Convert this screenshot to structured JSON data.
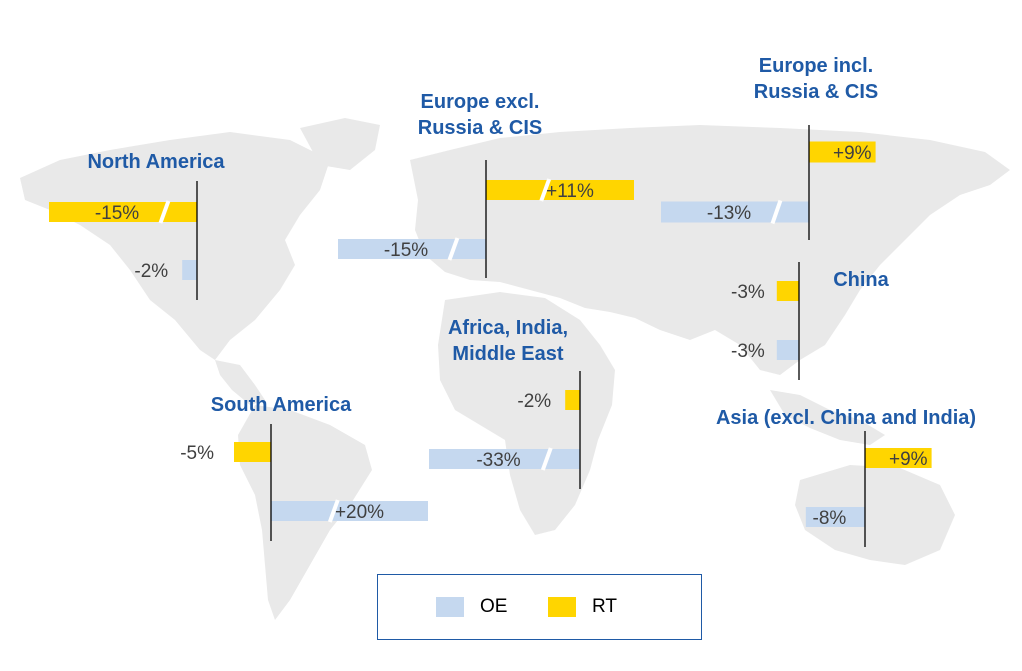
{
  "colors": {
    "OE": "#c5d8ef",
    "RT": "#ffd500",
    "title": "#1f5aa6",
    "label": "#404040"
  },
  "legend": {
    "oe_label": "OE",
    "rt_label": "RT"
  },
  "chart_data": {
    "type": "bar",
    "orientation": "horizontal",
    "series": [
      {
        "name": "OE",
        "color": "#c5d8ef"
      },
      {
        "name": "RT",
        "color": "#ffd500"
      }
    ],
    "regions": [
      {
        "key": "north-america",
        "title": [
          "North America"
        ],
        "bars": [
          {
            "series": "RT",
            "value": -15,
            "label": "-15%",
            "broken": true
          },
          {
            "series": "OE",
            "value": -2,
            "label": "-2%",
            "broken": false
          }
        ]
      },
      {
        "key": "europe-excl",
        "title": [
          "Europe excl.",
          "Russia & CIS"
        ],
        "bars": [
          {
            "series": "RT",
            "value": 11,
            "label": "+11%",
            "broken": true
          },
          {
            "series": "OE",
            "value": -15,
            "label": "-15%",
            "broken": true
          }
        ]
      },
      {
        "key": "europe-incl",
        "title": [
          "Europe incl.",
          "Russia & CIS"
        ],
        "bars": [
          {
            "series": "RT",
            "value": 9,
            "label": "+9%",
            "broken": false
          },
          {
            "series": "OE",
            "value": -13,
            "label": "-13%",
            "broken": true
          }
        ]
      },
      {
        "key": "china",
        "title": [
          "China"
        ],
        "bars": [
          {
            "series": "RT",
            "value": -3,
            "label": "-3%",
            "broken": false
          },
          {
            "series": "OE",
            "value": -3,
            "label": "-3%",
            "broken": false
          }
        ]
      },
      {
        "key": "africa-india-me",
        "title": [
          "Africa, India,",
          "Middle East"
        ],
        "bars": [
          {
            "series": "RT",
            "value": -2,
            "label": "-2%",
            "broken": false
          },
          {
            "series": "OE",
            "value": -33,
            "label": "-33%",
            "broken": true
          }
        ]
      },
      {
        "key": "south-america",
        "title": [
          "South America"
        ],
        "bars": [
          {
            "series": "RT",
            "value": -5,
            "label": "-5%",
            "broken": false
          },
          {
            "series": "OE",
            "value": 20,
            "label": "+20%",
            "broken": true
          }
        ]
      },
      {
        "key": "asia",
        "title": [
          "Asia (excl. China and India)"
        ],
        "bars": [
          {
            "series": "RT",
            "value": 9,
            "label": "+9%",
            "broken": false
          },
          {
            "series": "OE",
            "value": -8,
            "label": "-8%",
            "broken": false
          }
        ]
      }
    ]
  }
}
